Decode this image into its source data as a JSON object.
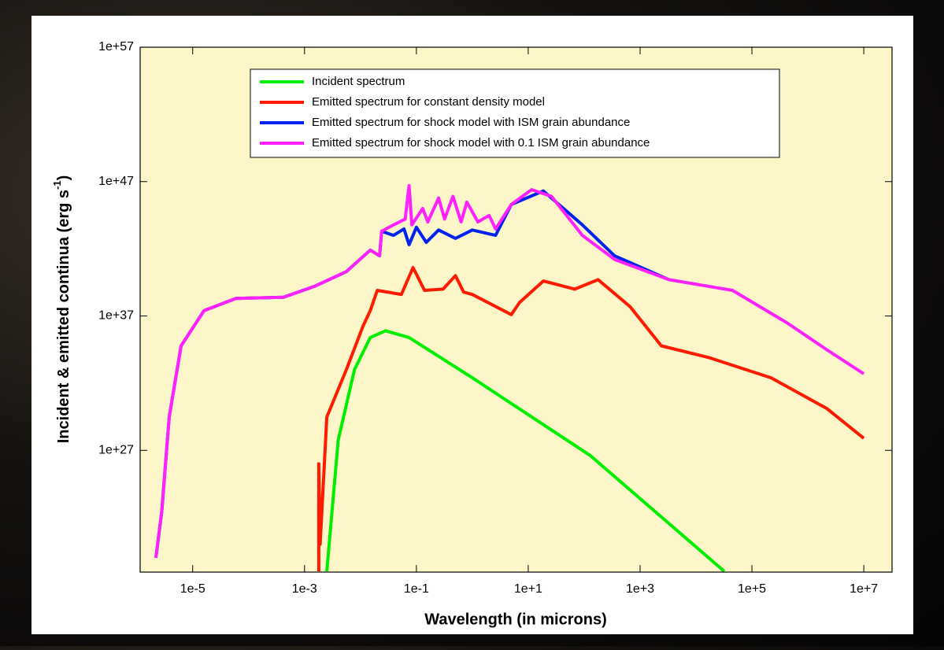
{
  "chart_data": {
    "type": "line",
    "xlabel": "Wavelength (in microns)",
    "ylabel": [
      "Incident & emitted continua (erg s",
      "-1",
      ")"
    ],
    "log_x": true,
    "log_y": true,
    "legend": "top",
    "xlim": [
      1.15e-06,
      32000000.0
    ],
    "ylim": [
      8.7e+17,
      1e+57
    ],
    "xticks": [
      {
        "value": 1e-05,
        "label": "1e-5"
      },
      {
        "value": 0.001,
        "label": "1e-3"
      },
      {
        "value": 0.1,
        "label": "1e-1"
      },
      {
        "value": 10,
        "label": "1e+1"
      },
      {
        "value": 1000,
        "label": "1e+3"
      },
      {
        "value": 100000,
        "label": "1e+5"
      },
      {
        "value": 10000000,
        "label": "1e+7"
      }
    ],
    "yticks": [
      {
        "value": 1e+27,
        "label": "1e+27"
      },
      {
        "value": 1e+37,
        "label": "1e+37"
      },
      {
        "value": 1e+47,
        "label": "1e+47"
      },
      {
        "value": 1e+57,
        "label": "1e+57"
      }
    ],
    "series": [
      {
        "name": "Incident spectrum",
        "color": "#00ee00",
        "x": [
          0.0025,
          0.004,
          0.0078,
          0.015,
          0.028,
          0.074,
          1,
          130,
          32000
        ],
        "values": [
          1e+18,
          6e+27,
          1e+33,
          2.5e+35,
          8e+35,
          2.5e+35,
          2.5e+32,
          4e+26,
          1e+18
        ]
      },
      {
        "name": "Emitted spectrum for constant density model",
        "color": "#ff1a00",
        "x": [
          0.0018,
          0.0018,
          0.0019,
          0.0025,
          0.0056,
          0.011,
          0.015,
          0.02,
          0.054,
          0.087,
          0.14,
          0.3,
          0.5,
          0.7,
          1,
          5,
          7,
          18.6,
          68,
          178,
          660,
          2400,
          17000,
          220000,
          2200000,
          10000000
        ],
        "values": [
          1e+18,
          1e+26,
          1e+20,
          3e+29,
          1e+33,
          1.6e+36,
          2.5e+37,
          8e+38,
          4e+38,
          4e+40,
          8e+38,
          1e+39,
          1e+40,
          6e+38,
          4e+38,
          1.26e+37,
          1e+38,
          4e+39,
          1e+39,
          5e+39,
          5e+37,
          6e+34,
          8e+33,
          2.5e+32,
          1.26e+30,
          8e+27
        ]
      },
      {
        "name": "Emitted spectrum for shock model with ISM grain abundance",
        "color": "#0022ee",
        "x": [
          2.2e-06,
          2.8e-06,
          3.8e-06,
          6.2e-06,
          1.6e-05,
          5.9e-05,
          0.00042,
          0.0015,
          0.0056,
          0.015,
          0.022,
          0.024,
          0.039,
          0.06,
          0.074,
          0.1,
          0.15,
          0.25,
          0.5,
          1,
          2.6,
          5,
          18.6,
          93,
          350,
          3300
        ],
        "values": [
          1e+19,
          3e+22,
          3e+29,
          6e+34,
          2.5e+37,
          2e+38,
          2.5e+38,
          1.6e+39,
          2e+40,
          8e+41,
          3e+41,
          2e+43,
          1e+43,
          3e+43,
          2e+42,
          4e+43,
          3e+42,
          2.5e+43,
          6e+42,
          2.5e+43,
          1e+43,
          2e+45,
          2e+46,
          6e+43,
          3e+41,
          5e+39
        ]
      },
      {
        "name": "Emitted spectrum for shock model with 0.1 ISM grain abundance",
        "color": "#ff22ff",
        "x": [
          2.2e-06,
          2.8e-06,
          3.8e-06,
          6.2e-06,
          1.6e-05,
          5.9e-05,
          0.00042,
          0.0015,
          0.0056,
          0.015,
          0.022,
          0.024,
          0.039,
          0.063,
          0.074,
          0.083,
          0.13,
          0.16,
          0.25,
          0.32,
          0.45,
          0.63,
          0.8,
          1.26,
          2,
          2.6,
          5,
          11.5,
          26,
          93,
          350,
          3300,
          45000,
          430000,
          2200000,
          10000000
        ],
        "values": [
          1e+19,
          3e+22,
          3e+29,
          6e+34,
          2.5e+37,
          2e+38,
          2.5e+38,
          1.6e+39,
          2e+40,
          8e+41,
          3e+41,
          2e+43,
          6e+43,
          1.6e+44,
          5e+46,
          6e+43,
          1e+45,
          1e+44,
          6e+45,
          1.6e+44,
          8e+45,
          1e+44,
          3e+45,
          1e+44,
          3e+44,
          3e+43,
          2e+45,
          2.5e+46,
          8e+45,
          1e+43,
          1.6e+41,
          5e+39,
          8e+38,
          3e+36,
          3e+34,
          5e+32
        ]
      }
    ]
  }
}
